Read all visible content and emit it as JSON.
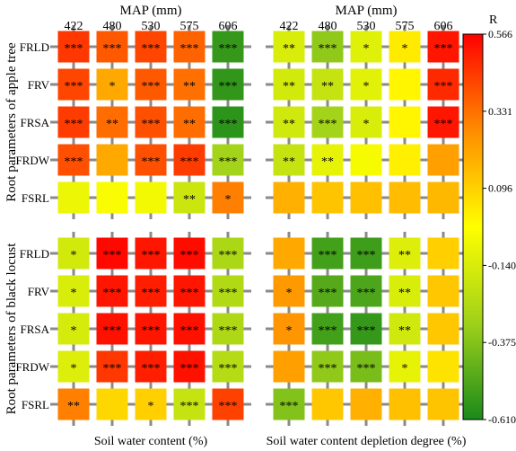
{
  "chart_data": {
    "type": "heatmap",
    "colorbar": {
      "label": "R",
      "min": -0.61,
      "max": 0.566,
      "ticks": [
        "0.566",
        "0.331",
        "0.096",
        "-0.140",
        "-0.375",
        "-0.610"
      ],
      "colors": [
        "#1a8a1a",
        "#9fd11a",
        "#ffff00",
        "#ff8c00",
        "#ff0000"
      ]
    },
    "y_group_labels": [
      "Root parameters of apple tree",
      "Root  parameters of black locust"
    ],
    "row_labels": [
      "FRLD",
      "FRV",
      "FRSA",
      "FRDW",
      "FSRL"
    ],
    "column_title": "MAP (mm)",
    "columns": [
      "422",
      "480",
      "530",
      "575",
      "606"
    ],
    "panels": [
      {
        "xlabel": "Soil water content  (%)",
        "apple": {
          "values": [
            [
              0.45,
              0.38,
              0.42,
              0.36,
              -0.55
            ],
            [
              0.42,
              0.2,
              0.38,
              0.33,
              -0.56
            ],
            [
              0.44,
              0.34,
              0.4,
              0.34,
              -0.57
            ],
            [
              0.4,
              0.2,
              0.4,
              0.44,
              -0.3
            ],
            [
              -0.08,
              -0.04,
              -0.06,
              -0.18,
              0.3
            ]
          ],
          "sig": [
            [
              "***",
              "***",
              "***",
              "***",
              "***"
            ],
            [
              "***",
              "*",
              "***",
              "**",
              "***"
            ],
            [
              "***",
              "**",
              "***",
              "**",
              "***"
            ],
            [
              "***",
              "",
              "***",
              "***",
              "***"
            ],
            [
              "",
              "",
              "",
              "**",
              "*"
            ]
          ]
        },
        "locust": {
          "values": [
            [
              -0.16,
              0.55,
              0.52,
              0.54,
              -0.28
            ],
            [
              -0.14,
              0.52,
              0.5,
              0.52,
              -0.26
            ],
            [
              -0.15,
              0.53,
              0.52,
              0.53,
              -0.27
            ],
            [
              -0.13,
              0.45,
              0.5,
              0.53,
              -0.25
            ],
            [
              0.3,
              0.08,
              0.1,
              -0.2,
              0.43
            ]
          ],
          "sig": [
            [
              "*",
              "***",
              "***",
              "***",
              "***"
            ],
            [
              "*",
              "***",
              "***",
              "***",
              "***"
            ],
            [
              "*",
              "***",
              "***",
              "***",
              "***"
            ],
            [
              "*",
              "***",
              "***",
              "***",
              "***"
            ],
            [
              "**",
              "",
              "*",
              "***",
              "***"
            ]
          ]
        }
      },
      {
        "xlabel": "Soil water content depletion degree (%)",
        "apple": {
          "values": [
            [
              -0.14,
              -0.35,
              -0.12,
              0.03,
              0.52
            ],
            [
              -0.16,
              -0.2,
              -0.11,
              0.0,
              0.48
            ],
            [
              -0.17,
              -0.3,
              -0.14,
              0.0,
              0.52
            ],
            [
              -0.2,
              -0.1,
              -0.05,
              0.02,
              0.22
            ],
            [
              0.18,
              0.13,
              0.14,
              0.15,
              0.16
            ]
          ],
          "sig": [
            [
              "**",
              "***",
              "*",
              "*",
              "***"
            ],
            [
              "**",
              "**",
              "*",
              "",
              "***"
            ],
            [
              "**",
              "***",
              "*",
              "",
              "***"
            ],
            [
              "**",
              "**",
              "",
              "",
              ""
            ],
            [
              "",
              "",
              "",
              "",
              ""
            ]
          ]
        },
        "locust": {
          "values": [
            [
              0.2,
              -0.52,
              -0.53,
              -0.13,
              0.1
            ],
            [
              0.24,
              -0.48,
              -0.5,
              -0.14,
              0.12
            ],
            [
              0.25,
              -0.52,
              -0.55,
              -0.17,
              0.12
            ],
            [
              0.22,
              -0.35,
              -0.4,
              -0.1,
              0.05
            ],
            [
              -0.38,
              0.12,
              0.18,
              0.14,
              0.13
            ]
          ],
          "sig": [
            [
              "",
              "***",
              "***",
              "**",
              ""
            ],
            [
              "*",
              "***",
              "***",
              "**",
              ""
            ],
            [
              "*",
              "***",
              "***",
              "**",
              ""
            ],
            [
              "",
              "***",
              "***",
              "*",
              ""
            ],
            [
              "***",
              "",
              "",
              "",
              ""
            ]
          ]
        }
      }
    ]
  }
}
